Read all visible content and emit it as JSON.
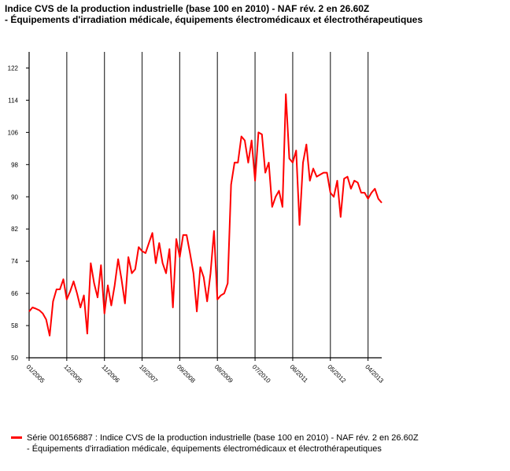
{
  "chart_data": {
    "type": "line",
    "title": "Indice CVS de la production industrielle (base 100 en 2010) - NAF rév. 2 en 26.60Z",
    "subtitle": "- Équipements d'irradiation médicale, équipements électromédicaux et électrothérapeutiques",
    "xlabel": "",
    "ylabel": "",
    "ylim": [
      50,
      126
    ],
    "yticks": [
      50,
      58,
      66,
      74,
      82,
      90,
      98,
      106,
      114,
      122
    ],
    "xticks": [
      "01/2005",
      "12/2005",
      "11/2006",
      "10/2007",
      "09/2008",
      "08/2009",
      "07/2010",
      "06/2011",
      "05/2012",
      "04/2013"
    ],
    "grid": "vertical",
    "legend_position": "bottom",
    "color": "#ff0000",
    "series": [
      {
        "name": "Série 001656887 : Indice CVS de la production industrielle (base 100 en 2010) - NAF rév. 2 en 26.60Z - Équipements d'irradiation médicale, équipements électromédicaux et électrothérapeutiques",
        "values": [
          61.5,
          62.5,
          62.2,
          61.8,
          61,
          59.5,
          55.5,
          64,
          67,
          67,
          69.5,
          64.5,
          66.5,
          69,
          66,
          62.5,
          65.5,
          56,
          73.5,
          68.5,
          65,
          73,
          61,
          68,
          63,
          68,
          74.5,
          69.5,
          63.5,
          75,
          71,
          72,
          77.5,
          76.5,
          76,
          78.5,
          81,
          73.5,
          78.5,
          73.5,
          71,
          77,
          62.5,
          79.5,
          75,
          80.5,
          80.5,
          76,
          71,
          61.5,
          72.5,
          70,
          64,
          71,
          81.5,
          64.5,
          65.5,
          66,
          68.5,
          93,
          98.5,
          98.5,
          105,
          104,
          98.5,
          104,
          94,
          106,
          105.5,
          96,
          98.5,
          87.5,
          90,
          91.5,
          87.5,
          115.5,
          99.5,
          98.5,
          101.5,
          83,
          98.5,
          103,
          94,
          97,
          95,
          95.5,
          96,
          96,
          91,
          90,
          94,
          85,
          94.5,
          95,
          92,
          94,
          93.5,
          91,
          91,
          89.5,
          91,
          92,
          89.5,
          88.5
        ]
      }
    ],
    "legend": {
      "line1": "Série 001656887 : Indice CVS de la production industrielle (base 100 en 2010) - NAF rév. 2 en 26.60Z",
      "line2": "- Équipements d'irradiation médicale, équipements électromédicaux et électrothérapeutiques"
    }
  }
}
